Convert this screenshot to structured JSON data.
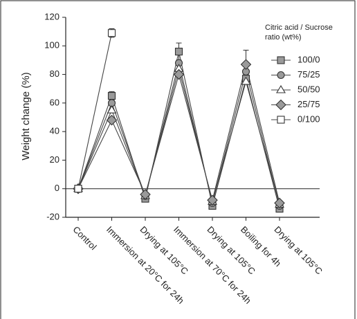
{
  "chart_data": {
    "type": "line",
    "y_label": "Weight change (%)",
    "legend_title": [
      "Citric acid / Sucrose",
      "ratio (wt%)"
    ],
    "categories": [
      "Control",
      "Immersion at 20°C for 24h",
      "Drying at 105°C",
      "Immersion at 70°C for 24h",
      "Drying at 105°C",
      "Boiling for 4h",
      "Drying at 105°C"
    ],
    "series": [
      {
        "name": "100/0",
        "marker": "square",
        "color": "#9a9a9a",
        "values": [
          0,
          65,
          -7,
          96,
          -12,
          77,
          -14
        ],
        "errors": [
          null,
          3,
          null,
          6,
          null,
          null,
          null
        ]
      },
      {
        "name": "75/25",
        "marker": "circle",
        "color": "#9a9a9a",
        "values": [
          0,
          60,
          -5,
          88,
          -10,
          82,
          -12
        ],
        "errors": [
          null,
          null,
          null,
          null,
          null,
          null,
          null
        ]
      },
      {
        "name": "50/50",
        "marker": "triangle",
        "color": "#ffffff",
        "values": [
          0,
          55,
          -5,
          84,
          -9,
          75,
          -11
        ],
        "errors": [
          null,
          null,
          null,
          null,
          null,
          null,
          null
        ]
      },
      {
        "name": "25/75",
        "marker": "diamond",
        "color": "#9a9a9a",
        "values": [
          0,
          48,
          -4,
          80,
          -8,
          87,
          -10
        ],
        "errors": [
          null,
          null,
          null,
          null,
          null,
          10,
          null
        ]
      },
      {
        "name": "0/100",
        "marker": "square",
        "color": "#ffffff",
        "values": [
          0,
          109,
          null,
          null,
          null,
          null,
          null
        ],
        "errors": [
          null,
          3,
          null,
          null,
          null,
          null,
          null
        ]
      }
    ],
    "ylim": [
      -20,
      120
    ],
    "yticks": [
      -20,
      0,
      20,
      40,
      60,
      80,
      100,
      120
    ],
    "reference_line": 0,
    "grid": false
  }
}
